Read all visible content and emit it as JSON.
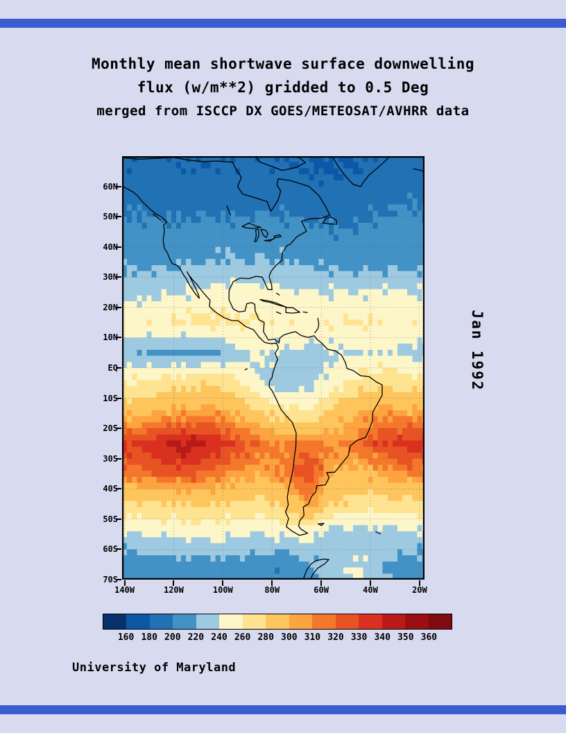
{
  "page": {
    "background": "#d8daf0",
    "bar_color": "#3b5bd0"
  },
  "title": {
    "line1": "Monthly mean shortwave surface downwelling",
    "line2": "flux (w/m**2) gridded to 0.5 Deg",
    "line3": "merged from ISCCP DX GOES/METEOSAT/AVHRR data"
  },
  "side_label": "Jan 1992",
  "credit": "University of Maryland",
  "chart_data": {
    "type": "heatmap",
    "title": "Monthly mean shortwave surface downwelling flux (w/m**2) gridded to 0.5 Deg",
    "subtitle": "merged from ISCCP DX GOES/METEOSAT/AVHRR data",
    "date_label": "Jan 1992",
    "units": "w/m**2",
    "lon_range": [
      -141,
      -18
    ],
    "lat_range": [
      -70,
      70
    ],
    "lon_ticks": {
      "labels": [
        "140W",
        "120W",
        "100W",
        "80W",
        "60W",
        "40W",
        "20W"
      ],
      "values": [
        -140,
        -120,
        -100,
        -80,
        -60,
        -40,
        -20
      ]
    },
    "lat_ticks": {
      "labels": [
        "60N",
        "50N",
        "40N",
        "30N",
        "20N",
        "10N",
        "EQ",
        "10S",
        "20S",
        "30S",
        "40S",
        "50S",
        "60S",
        "70S"
      ],
      "values": [
        60,
        50,
        40,
        30,
        20,
        10,
        0,
        -10,
        -20,
        -30,
        -40,
        -50,
        -60,
        -70
      ]
    },
    "colorbar": {
      "levels": [
        160,
        180,
        200,
        220,
        240,
        260,
        280,
        300,
        310,
        320,
        330,
        340,
        350,
        360
      ],
      "colors": [
        "#08306b",
        "#0d57a7",
        "#2171b5",
        "#4292c6",
        "#9ecae1",
        "#fdf6c9",
        "#fee391",
        "#fdc55c",
        "#fda33f",
        "#f4772b",
        "#e85324",
        "#d93020",
        "#b81a18",
        "#9a0f13",
        "#7f0a10"
      ]
    },
    "grid": {
      "lon_centers": [
        -135,
        -125,
        -115,
        -105,
        -95,
        -85,
        -75,
        -65,
        -55,
        -45,
        -35,
        -25
      ],
      "lat_centers": [
        65,
        55,
        45,
        35,
        25,
        15,
        5,
        -5,
        -15,
        -25,
        -35,
        -45,
        -55,
        -65
      ],
      "values": [
        [
          185,
          183,
          182,
          182,
          183,
          184,
          183,
          180,
          178,
          180,
          185,
          188
        ],
        [
          195,
          193,
          192,
          192,
          193,
          194,
          193,
          190,
          188,
          190,
          195,
          198
        ],
        [
          205,
          205,
          206,
          207,
          208,
          208,
          206,
          204,
          202,
          202,
          205,
          208
        ],
        [
          215,
          216,
          218,
          220,
          222,
          222,
          220,
          217,
          214,
          212,
          212,
          214
        ],
        [
          232,
          236,
          240,
          246,
          248,
          248,
          244,
          240,
          238,
          240,
          242,
          240
        ],
        [
          256,
          260,
          264,
          266,
          264,
          260,
          256,
          256,
          260,
          262,
          260,
          256
        ],
        [
          222,
          216,
          212,
          216,
          230,
          242,
          238,
          232,
          236,
          240,
          242,
          234
        ],
        [
          262,
          270,
          275,
          278,
          268,
          240,
          228,
          232,
          252,
          268,
          275,
          272
        ],
        [
          295,
          302,
          306,
          308,
          300,
          285,
          268,
          262,
          288,
          302,
          308,
          304
        ],
        [
          332,
          340,
          345,
          340,
          328,
          318,
          310,
          318,
          308,
          315,
          330,
          336
        ],
        [
          315,
          322,
          326,
          318,
          308,
          302,
          312,
          330,
          298,
          295,
          305,
          312
        ],
        [
          275,
          278,
          282,
          282,
          278,
          274,
          286,
          304,
          282,
          272,
          270,
          274
        ],
        [
          238,
          242,
          245,
          246,
          244,
          240,
          244,
          248,
          226,
          230,
          232,
          236
        ],
        [
          208,
          210,
          212,
          214,
          212,
          208,
          205,
          215,
          231,
          243,
          222,
          210
        ]
      ]
    }
  }
}
